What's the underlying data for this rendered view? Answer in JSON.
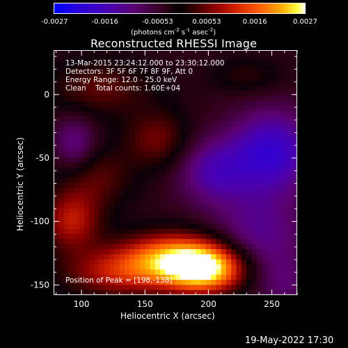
{
  "colorbar": {
    "ticks": [
      "-0.0027",
      "-0.0016",
      "-0.00053",
      "0.00053",
      "0.0016",
      "0.0027"
    ],
    "unit_prefix": "(photons cm",
    "unit_exp1": "-2",
    "unit_mid1": " s",
    "unit_exp2": "-1",
    "unit_mid2": " asec",
    "unit_exp3": "-2",
    "unit_suffix": ")"
  },
  "info": {
    "time_range": "13-Mar-2015 23:24:12.000 to 23:30:12.000",
    "detectors": "Detectors: 3F 5F 6F 7F 8F 9F, Att 0",
    "energy": "Energy Range: 12.0 - 25.0 keV",
    "clean": "Clean    Total counts: 1.60E+04",
    "peak": "Position of Peak = [198,-138]"
  },
  "footer": {
    "timestamp": "19-May-2022 17:30"
  },
  "chart_data": {
    "type": "heatmap",
    "title": "Reconstructed RHESSI Image",
    "xlabel": "Heliocentric X (arcsec)",
    "ylabel": "Heliocentric Y (arcsec)",
    "xlim": [
      78,
      270
    ],
    "ylim": [
      -158,
      35
    ],
    "x_ticks": [
      100,
      150,
      200,
      250
    ],
    "y_ticks": [
      0,
      -50,
      -100,
      -150
    ],
    "colorbar_range": [
      -0.0027,
      0.0027
    ],
    "peak": [
      198,
      -138
    ],
    "sources": [
      {
        "x": 198,
        "y": -138,
        "amp": 0.0027,
        "sx": 22,
        "sy": 13
      },
      {
        "x": 172,
        "y": -128,
        "amp": 0.0019,
        "sx": 28,
        "sy": 14
      },
      {
        "x": 130,
        "y": -140,
        "amp": 0.0013,
        "sx": 32,
        "sy": 14
      },
      {
        "x": 92,
        "y": -100,
        "amp": 0.0013,
        "sx": 16,
        "sy": 16
      },
      {
        "x": 110,
        "y": -65,
        "amp": 0.0008,
        "sx": 22,
        "sy": 18
      },
      {
        "x": 160,
        "y": -35,
        "amp": 0.0009,
        "sx": 18,
        "sy": 16
      },
      {
        "x": 115,
        "y": 5,
        "amp": 0.0008,
        "sx": 30,
        "sy": 16
      },
      {
        "x": 230,
        "y": 15,
        "amp": 0.0005,
        "sx": 20,
        "sy": 10
      },
      {
        "x": 250,
        "y": -45,
        "amp": -0.0016,
        "sx": 22,
        "sy": 22
      },
      {
        "x": 205,
        "y": -60,
        "amp": -0.0011,
        "sx": 20,
        "sy": 18
      },
      {
        "x": 95,
        "y": -40,
        "amp": -0.0009,
        "sx": 12,
        "sy": 16
      },
      {
        "x": 240,
        "y": -110,
        "amp": -0.0009,
        "sx": 25,
        "sy": 25
      },
      {
        "x": 260,
        "y": -150,
        "amp": -0.0005,
        "sx": 15,
        "sy": 15
      }
    ]
  }
}
